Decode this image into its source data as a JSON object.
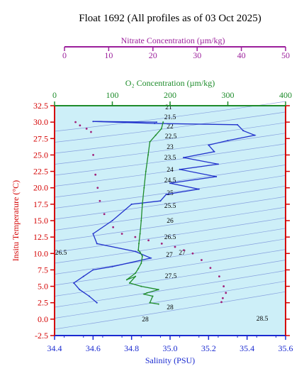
{
  "chart_data": {
    "type": "line",
    "title": "Float 1692  (All profiles as of 03 Oct 2025)",
    "xlabel": "Salinity (PSU)",
    "ylabel": "Insitu Temperature (°C)",
    "top_axis_1": {
      "label": "Nitrate Concentration (µm/kg)",
      "range": [
        0,
        50
      ],
      "ticks": [
        "0",
        "10",
        "20",
        "30",
        "40",
        "50"
      ]
    },
    "top_axis_2": {
      "label": "O₂ Concentration (µm/kg)",
      "range": [
        0,
        400
      ],
      "ticks": [
        "0",
        "100",
        "200",
        "300",
        "400"
      ]
    },
    "xlim": [
      34.4,
      35.6
    ],
    "ylim": [
      -2.5,
      32.5
    ],
    "x_ticks": [
      "34.4",
      "34.6",
      "34.8",
      "35.0",
      "35.2",
      "35.4",
      "35.6"
    ],
    "y_ticks": [
      "-2.5",
      "0.0",
      "2.5",
      "5.0",
      "7.5",
      "10.0",
      "12.5",
      "15.0",
      "17.5",
      "20.0",
      "22.5",
      "25.0",
      "27.5",
      "30.0",
      "32.5"
    ],
    "density_contours": [
      "21",
      "21.5",
      "22",
      "22.5",
      "23",
      "23.5",
      "24",
      "24.5",
      "25",
      "25.5",
      "26",
      "26.5",
      "27",
      "27",
      "27.5",
      "28",
      "28",
      "28.5",
      "26.5"
    ],
    "series": [
      {
        "axis": "salinity",
        "x": [
          34.93,
          34.6,
          34.92,
          35.35,
          35.38,
          35.44,
          35.3,
          35.2,
          35.23,
          35.07,
          35.25,
          35.05,
          35.24,
          35.0,
          35.15,
          34.98,
          34.95,
          34.8,
          34.7,
          34.6,
          34.62,
          34.82,
          34.9,
          34.7,
          34.6,
          34.55,
          34.5,
          34.53,
          34.58,
          34.62
        ],
        "y": [
          30.0,
          30.1,
          29.8,
          29.6,
          28.7,
          28.0,
          27.2,
          26.5,
          25.5,
          24.6,
          23.6,
          22.8,
          21.7,
          20.7,
          19.8,
          19.0,
          18.0,
          17.5,
          15.0,
          13.0,
          11.5,
          10.3,
          9.3,
          8.0,
          7.5,
          6.5,
          5.5,
          4.5,
          3.5,
          2.5
        ]
      },
      {
        "axis": "oxygen",
        "x": [
          188,
          185,
          175,
          165,
          162,
          158,
          155,
          152,
          150,
          148,
          146,
          145,
          148,
          152,
          150,
          145,
          140,
          125,
          140,
          130,
          150,
          180,
          160,
          155,
          170,
          165,
          180
        ],
        "y": [
          30.0,
          29.0,
          28.0,
          27.0,
          25.0,
          22.5,
          20.0,
          17.5,
          15.0,
          13.0,
          11.5,
          10.5,
          10.2,
          9.6,
          8.5,
          7.7,
          7.0,
          6.0,
          6.5,
          5.5,
          5.0,
          4.5,
          4.0,
          3.8,
          3.5,
          2.5,
          2.3
        ]
      },
      {
        "axis": "nitrate",
        "x": [
          2.5,
          3.5,
          5,
          6,
          6.5,
          7,
          7.5,
          8,
          9,
          11,
          13,
          16,
          19,
          22,
          25,
          27,
          29,
          31,
          33,
          35,
          36,
          36.5,
          35.8,
          35.5
        ],
        "y": [
          30.0,
          29.5,
          29.0,
          28.5,
          25.0,
          22.0,
          20.0,
          18.0,
          16.0,
          14.0,
          13.0,
          12.5,
          12.0,
          11.5,
          11.0,
          10.5,
          10.0,
          9.0,
          7.8,
          6.5,
          5.0,
          4.0,
          3.2,
          2.6
        ]
      }
    ]
  }
}
